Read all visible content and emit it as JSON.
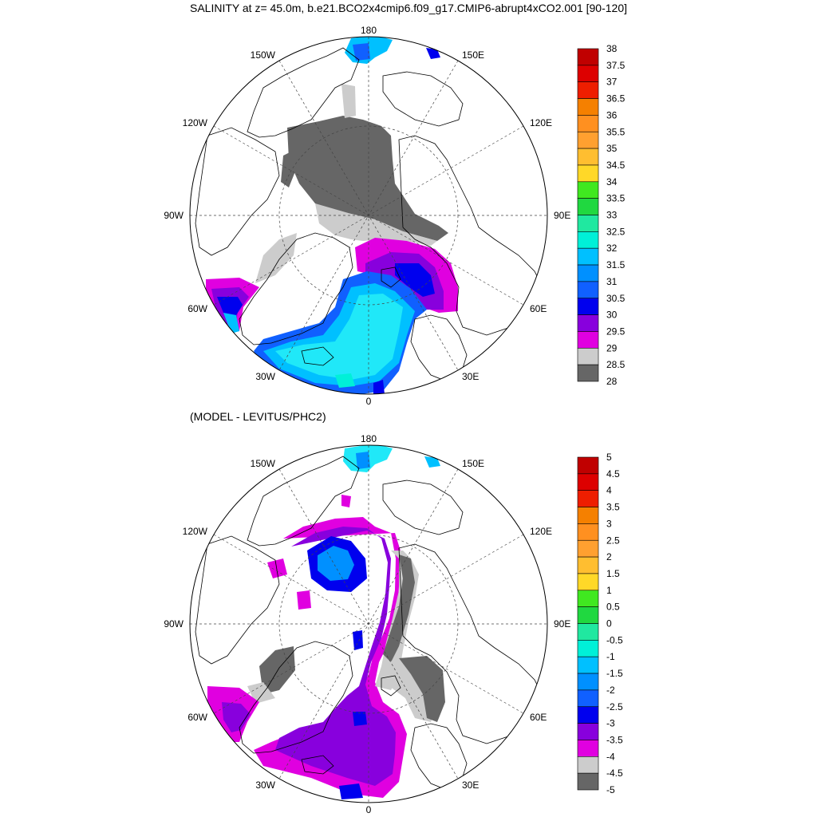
{
  "panels": [
    {
      "title": "SALINITY at z=  45.0m, b.e21.BCO2x4cmip6.f09_g17.CMIP6-abrupt4xCO2.001 [90-120]",
      "lon_labels": [
        "180",
        "150E",
        "120E",
        "90E",
        "60E",
        "30E",
        "0",
        "30W",
        "60W",
        "90W",
        "120W",
        "150W"
      ],
      "colorbar": {
        "labels": [
          "38",
          "37.5",
          "37",
          "36.5",
          "36",
          "35.5",
          "35",
          "34.5",
          "34",
          "33.5",
          "33",
          "32.5",
          "32",
          "31.5",
          "31",
          "30.5",
          "30",
          "29.5",
          "29",
          "28.5",
          "28"
        ],
        "colors": [
          "#c00000",
          "#dd0000",
          "#ee1e00",
          "#ff3a00",
          "#f58000",
          "#ff9020",
          "#ffa030",
          "#ffbe30",
          "#ffd828",
          "#ffff00",
          "#40e820",
          "#20d840",
          "#20e8a0",
          "#00f0d8",
          "#20e8f8",
          "#00c0ff",
          "#0090ff",
          "#1060ff",
          "#0000ee",
          "#8800dd",
          "#9a20e0",
          "#e000e0",
          "#cccccc",
          "#666666"
        ]
      }
    },
    {
      "title": "(MODEL - LEVITUS/PHC2)",
      "lon_labels": [
        "180",
        "150E",
        "120E",
        "90E",
        "60E",
        "30E",
        "0",
        "30W",
        "60W",
        "90W",
        "120W",
        "150W"
      ],
      "colorbar": {
        "labels": [
          "5",
          "4.5",
          "4",
          "3.5",
          "3",
          "2.5",
          "2",
          "1.5",
          "1",
          "0.5",
          "0",
          "-0.5",
          "-1",
          "-1.5",
          "-2",
          "-2.5",
          "-3",
          "-3.5",
          "-4",
          "-4.5",
          "-5"
        ],
        "colors": [
          "#c00000",
          "#dd0000",
          "#ee1e00",
          "#ff3a00",
          "#f58000",
          "#ff9020",
          "#ffa030",
          "#ffbe30",
          "#ffd828",
          "#ffff00",
          "#40e820",
          "#20d840",
          "#20e8a0",
          "#00f0d8",
          "#20e8f8",
          "#00c0ff",
          "#0090ff",
          "#1060ff",
          "#0000ee",
          "#8800dd",
          "#9a20e0",
          "#e000e0",
          "#cccccc",
          "#666666"
        ]
      }
    }
  ]
}
